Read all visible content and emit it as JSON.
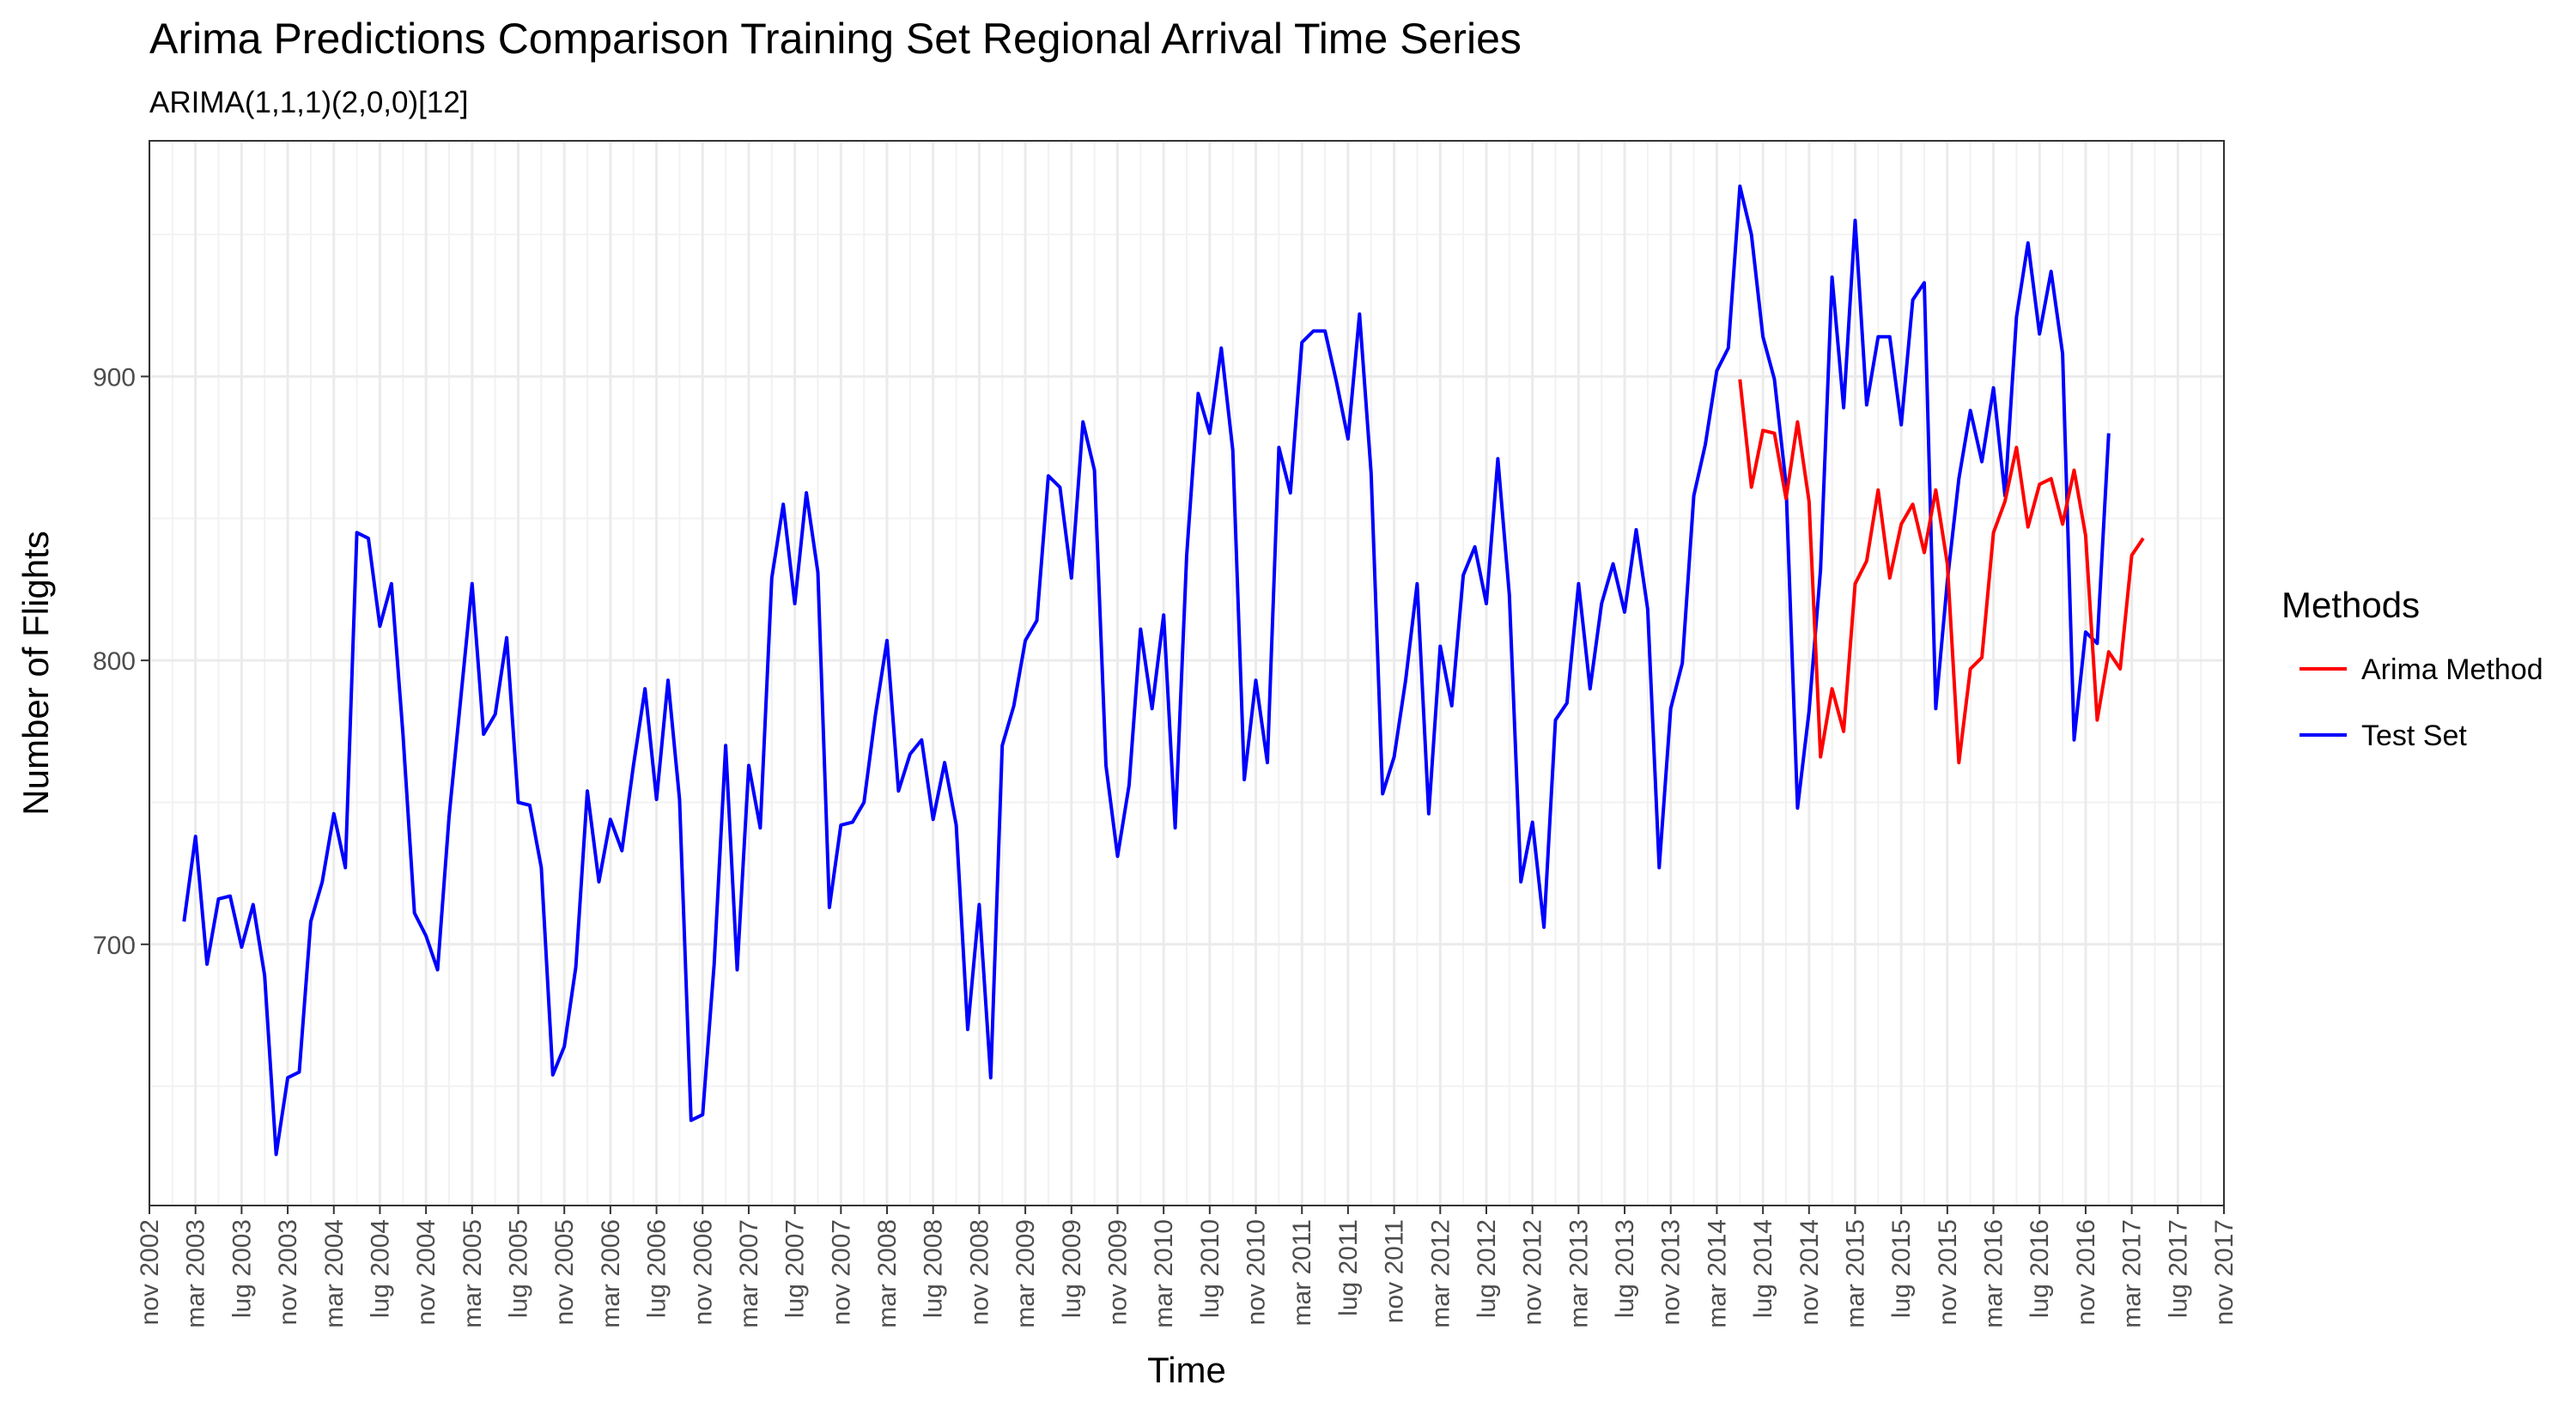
{
  "chart_data": {
    "type": "line",
    "title": "Arima Predictions Comparison Training Set Regional Arrival Time Series",
    "subtitle": "ARIMA(1,1,1)(2,0,0)[12]",
    "xlabel": "Time",
    "ylabel": "Number of Flights",
    "xlim": [
      "2002-11",
      "2017-11"
    ],
    "ylim": [
      608,
      983
    ],
    "y_ticks": [
      700,
      800,
      900
    ],
    "x_ticks": [
      {
        "date": "2002-11",
        "label": "nov 2002"
      },
      {
        "date": "2003-03",
        "label": "mar 2003"
      },
      {
        "date": "2003-07",
        "label": "lug 2003"
      },
      {
        "date": "2003-11",
        "label": "nov 2003"
      },
      {
        "date": "2004-03",
        "label": "mar 2004"
      },
      {
        "date": "2004-07",
        "label": "lug 2004"
      },
      {
        "date": "2004-11",
        "label": "nov 2004"
      },
      {
        "date": "2005-03",
        "label": "mar 2005"
      },
      {
        "date": "2005-07",
        "label": "lug 2005"
      },
      {
        "date": "2005-11",
        "label": "nov 2005"
      },
      {
        "date": "2006-03",
        "label": "mar 2006"
      },
      {
        "date": "2006-07",
        "label": "lug 2006"
      },
      {
        "date": "2006-11",
        "label": "nov 2006"
      },
      {
        "date": "2007-03",
        "label": "mar 2007"
      },
      {
        "date": "2007-07",
        "label": "lug 2007"
      },
      {
        "date": "2007-11",
        "label": "nov 2007"
      },
      {
        "date": "2008-03",
        "label": "mar 2008"
      },
      {
        "date": "2008-07",
        "label": "lug 2008"
      },
      {
        "date": "2008-11",
        "label": "nov 2008"
      },
      {
        "date": "2009-03",
        "label": "mar 2009"
      },
      {
        "date": "2009-07",
        "label": "lug 2009"
      },
      {
        "date": "2009-11",
        "label": "nov 2009"
      },
      {
        "date": "2010-03",
        "label": "mar 2010"
      },
      {
        "date": "2010-07",
        "label": "lug 2010"
      },
      {
        "date": "2010-11",
        "label": "nov 2010"
      },
      {
        "date": "2011-03",
        "label": "mar 2011"
      },
      {
        "date": "2011-07",
        "label": "lug 2011"
      },
      {
        "date": "2011-11",
        "label": "nov 2011"
      },
      {
        "date": "2012-03",
        "label": "mar 2012"
      },
      {
        "date": "2012-07",
        "label": "lug 2012"
      },
      {
        "date": "2012-11",
        "label": "nov 2012"
      },
      {
        "date": "2013-03",
        "label": "mar 2013"
      },
      {
        "date": "2013-07",
        "label": "lug 2013"
      },
      {
        "date": "2013-11",
        "label": "nov 2013"
      },
      {
        "date": "2014-03",
        "label": "mar 2014"
      },
      {
        "date": "2014-07",
        "label": "lug 2014"
      },
      {
        "date": "2014-11",
        "label": "nov 2014"
      },
      {
        "date": "2015-03",
        "label": "mar 2015"
      },
      {
        "date": "2015-07",
        "label": "lug 2015"
      },
      {
        "date": "2015-11",
        "label": "nov 2015"
      },
      {
        "date": "2016-03",
        "label": "mar 2016"
      },
      {
        "date": "2016-07",
        "label": "lug 2016"
      },
      {
        "date": "2016-11",
        "label": "nov 2016"
      },
      {
        "date": "2017-03",
        "label": "mar 2017"
      },
      {
        "date": "2017-07",
        "label": "lug 2017"
      },
      {
        "date": "2017-11",
        "label": "nov 2017"
      }
    ],
    "grid": true,
    "legend": {
      "title": "Methods",
      "position": "right"
    },
    "series": [
      {
        "name": "Test Set",
        "color": "#0000ff",
        "start": "2003-02",
        "values": [
          708,
          738,
          693,
          716,
          717,
          699,
          714,
          689,
          626,
          653,
          655,
          708,
          722,
          746,
          727,
          845,
          843,
          812,
          827,
          774,
          711,
          703,
          691,
          745,
          786,
          827,
          774,
          781,
          808,
          750,
          749,
          727,
          654,
          664,
          692,
          754,
          722,
          744,
          733,
          763,
          790,
          751,
          793,
          751,
          638,
          640,
          693,
          770,
          691,
          763,
          741,
          829,
          855,
          820,
          859,
          831,
          713,
          742,
          743,
          750,
          781,
          807,
          754,
          767,
          772,
          744,
          764,
          742,
          670,
          714,
          653,
          770,
          784,
          807,
          814,
          865,
          861,
          829,
          884,
          867,
          763,
          731,
          756,
          811,
          783,
          816,
          741,
          837,
          894,
          880,
          910,
          874,
          758,
          793,
          764,
          875,
          859,
          912,
          916,
          916,
          898,
          878,
          922,
          866,
          753,
          766,
          793,
          827,
          746,
          805,
          784,
          830,
          840,
          820,
          871,
          823,
          722,
          743,
          706,
          779,
          785,
          827,
          790,
          820,
          834,
          817,
          846,
          818,
          727,
          783,
          799,
          858,
          876,
          902,
          910,
          967,
          950,
          914,
          899,
          862,
          748,
          782,
          832,
          935,
          889,
          955,
          890,
          914,
          914,
          883,
          927,
          933,
          783,
          828,
          864,
          888,
          870,
          896,
          858,
          921,
          947,
          915,
          937,
          908,
          772,
          810,
          806,
          880
        ]
      },
      {
        "name": "Arima Method",
        "color": "#ff0000",
        "start": "2014-05",
        "values": [
          899,
          861,
          881,
          880,
          857,
          884,
          856,
          766,
          790,
          775,
          827,
          835,
          860,
          829,
          848,
          855,
          838,
          860,
          834,
          764,
          797,
          801,
          845,
          856,
          875,
          847,
          862,
          864,
          848,
          867,
          844,
          779,
          803,
          797,
          837,
          843
        ]
      }
    ]
  }
}
